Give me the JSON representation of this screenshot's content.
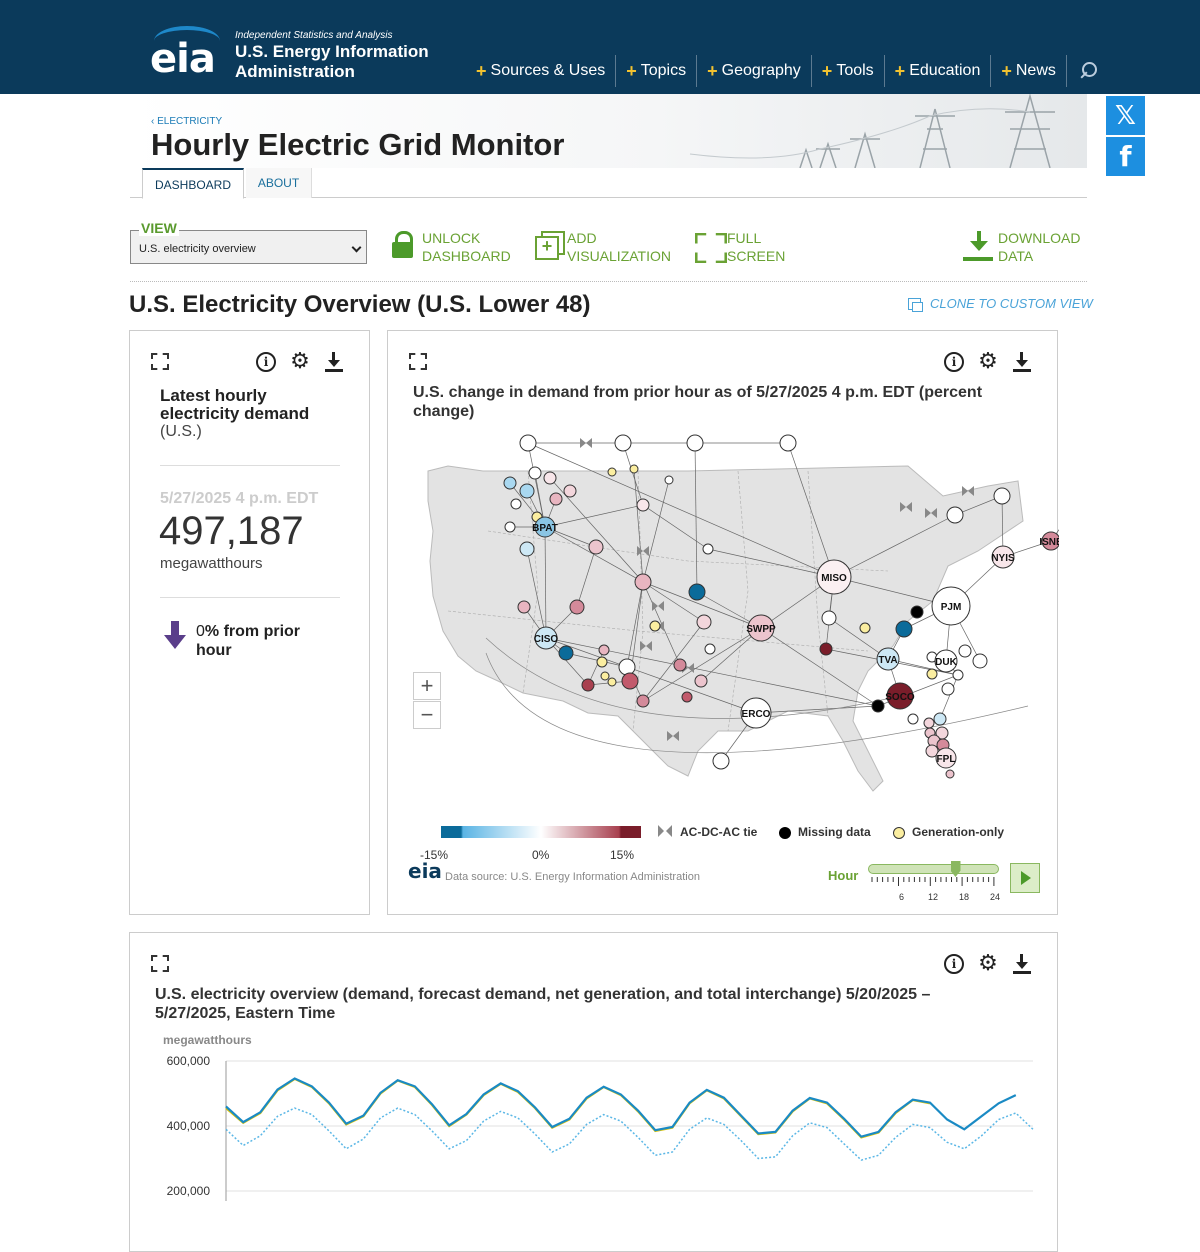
{
  "header": {
    "tagline": "Independent Statistics and Analysis",
    "org_line1": "U.S. Energy Information",
    "org_line2": "Administration",
    "logo": "eia",
    "nav": [
      "Sources & Uses",
      "Topics",
      "Geography",
      "Tools",
      "Education",
      "News"
    ]
  },
  "page": {
    "breadcrumb": "‹ ELECTRICITY",
    "title": "Hourly Electric Grid Monitor",
    "tabs": [
      "DASHBOARD",
      "ABOUT"
    ]
  },
  "toolbar": {
    "view_label": "VIEW",
    "view_selected": "U.S. electricity overview",
    "unlock": [
      "UNLOCK",
      "DASHBOARD"
    ],
    "add": [
      "ADD",
      "VISUALIZATION"
    ],
    "full": [
      "FULL",
      "SCREEN"
    ],
    "download": [
      "DOWNLOAD",
      "DATA"
    ]
  },
  "section": {
    "title": "U.S. Electricity Overview (U.S. Lower 48)",
    "clone": "CLONE TO CUSTOM VIEW"
  },
  "demand_card": {
    "title": "Latest hourly electricity demand",
    "region": "(U.S.)",
    "timestamp": "5/27/2025 4 p.m. EDT",
    "value": "497,187",
    "unit": "megawatthours",
    "change_pct": "0",
    "change_text": "% from prior hour"
  },
  "map_card": {
    "title": "U.S. change in demand from prior hour as of 5/27/2025 4 p.m. EDT (percent change)",
    "legend": {
      "tie": "AC-DC-AC tie",
      "missing": "Missing data",
      "genonly": "Generation-only",
      "ticks": [
        "-15%",
        "0%",
        "15%"
      ]
    },
    "source": "Data source: U.S. Energy Information Administration",
    "source_logo": "eia",
    "hour_label": "Hour",
    "hour_ticks": [
      "6",
      "12",
      "18",
      "24"
    ],
    "hour_value": 16,
    "regions": [
      "BPAT",
      "CISO",
      "SWPP",
      "MISO",
      "PJM",
      "NYIS",
      "ISNE",
      "TVA",
      "DUK",
      "SOCO",
      "ERCO",
      "FPL"
    ],
    "colors": {
      "neg": "#0b6b9a",
      "pos": "#7a1d2a",
      "missing": "#000000",
      "genonly": "#fbeea0"
    }
  },
  "overview_card": {
    "title": "U.S. electricity overview (demand, forecast demand, net generation, and total interchange) 5/20/2025 – 5/27/2025, Eastern Time"
  },
  "chart_data": {
    "type": "line",
    "title": "U.S. electricity overview (demand, forecast demand, net generation, and total interchange) 5/20/2025 – 5/27/2025, Eastern Time",
    "ylabel": "megawatthours",
    "ylim": [
      150000,
      600000
    ],
    "yticks": [
      "600,000",
      "400,000",
      "200,000"
    ],
    "series": [
      {
        "color": "#e0c400",
        "style": "solid",
        "values": [
          455000,
          410000,
          440000,
          510000,
          545000,
          520000,
          470000,
          405000,
          430000,
          500000,
          540000,
          520000,
          465000,
          400000,
          435000,
          495000,
          530000,
          505000,
          455000,
          395000,
          420000,
          485000,
          520000,
          495000,
          445000,
          385000,
          395000,
          470000,
          510000,
          485000,
          430000,
          375000,
          380000,
          445000,
          485000,
          470000,
          420000,
          365000,
          380000,
          440000,
          480000,
          470000
        ]
      },
      {
        "color": "#1a8ac4",
        "style": "solid",
        "values": [
          460000,
          412000,
          442000,
          512000,
          546000,
          522000,
          472000,
          407000,
          432000,
          502000,
          541000,
          522000,
          467000,
          402000,
          437000,
          497000,
          531000,
          507000,
          457000,
          397000,
          422000,
          487000,
          521000,
          497000,
          447000,
          387000,
          397000,
          472000,
          511000,
          487000,
          432000,
          377000,
          382000,
          447000,
          486000,
          472000,
          422000,
          367000,
          382000,
          442000,
          481000,
          472000,
          420000,
          390000,
          430000,
          470000,
          495000
        ]
      },
      {
        "color": "#5bb7e6",
        "style": "dotted",
        "values": [
          390000,
          340000,
          370000,
          430000,
          455000,
          435000,
          385000,
          330000,
          360000,
          425000,
          455000,
          435000,
          385000,
          330000,
          355000,
          415000,
          445000,
          425000,
          375000,
          320000,
          345000,
          405000,
          435000,
          415000,
          365000,
          310000,
          320000,
          390000,
          425000,
          405000,
          355000,
          300000,
          305000,
          370000,
          410000,
          395000,
          345000,
          295000,
          310000,
          365000,
          405000,
          395000,
          350000,
          330000,
          370000,
          420000,
          440000,
          390000
        ]
      }
    ]
  }
}
